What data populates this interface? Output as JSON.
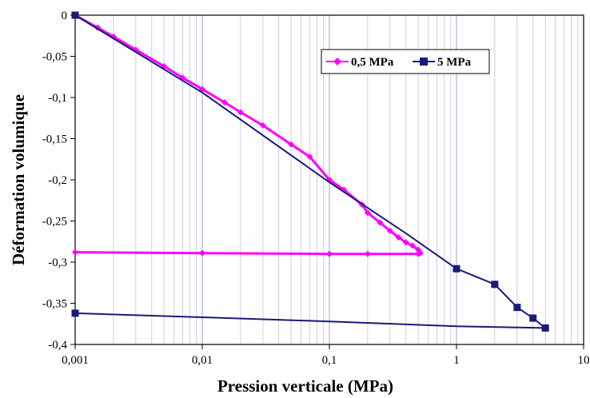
{
  "chart_data": {
    "type": "line",
    "title": "",
    "xlabel": "Pression verticale (MPa)",
    "ylabel": "Déformation volumique",
    "x_scale": "log",
    "xlim": [
      0.001,
      10
    ],
    "ylim": [
      -0.4,
      0
    ],
    "x_ticks": [
      "0,001",
      "0,01",
      "0,1",
      "1",
      "10"
    ],
    "y_ticks": [
      "0",
      "-0,05",
      "-0,1",
      "-0,15",
      "-0,2",
      "-0,25",
      "-0,3",
      "-0,35",
      "-0,4"
    ],
    "grid": "vertical minor and major gridlines on log x axis",
    "legend_position": "top-right",
    "series": [
      {
        "name": "0,5 MPa",
        "color": "#ff00ff",
        "marker": "diamond",
        "points": [
          [
            0.001,
            0
          ],
          [
            0.0015,
            -0.015
          ],
          [
            0.002,
            -0.026
          ],
          [
            0.003,
            -0.042
          ],
          [
            0.005,
            -0.062
          ],
          [
            0.007,
            -0.076
          ],
          [
            0.01,
            -0.09
          ],
          [
            0.015,
            -0.106
          ],
          [
            0.02,
            -0.118
          ],
          [
            0.03,
            -0.134
          ],
          [
            0.05,
            -0.157
          ],
          [
            0.07,
            -0.172
          ],
          [
            0.1,
            -0.2
          ],
          [
            0.13,
            -0.212
          ],
          [
            0.18,
            -0.23
          ],
          [
            0.2,
            -0.24
          ],
          [
            0.25,
            -0.252
          ],
          [
            0.3,
            -0.262
          ],
          [
            0.35,
            -0.27
          ],
          [
            0.4,
            -0.276
          ],
          [
            0.45,
            -0.28
          ],
          [
            0.5,
            -0.285
          ],
          [
            0.52,
            -0.289
          ],
          [
            0.5,
            -0.29
          ],
          [
            0.2,
            -0.29
          ],
          [
            0.1,
            -0.29
          ],
          [
            0.01,
            -0.289
          ],
          [
            0.001,
            -0.288
          ]
        ]
      },
      {
        "name": "5 MPa",
        "color": "#1a1a7a",
        "marker": "square",
        "points": [
          [
            0.001,
            0
          ],
          [
            0.01,
            -0.094
          ],
          [
            0.1,
            -0.203
          ],
          [
            0.4,
            -0.265
          ],
          [
            1,
            -0.308
          ],
          [
            2,
            -0.327
          ],
          [
            3,
            -0.355
          ],
          [
            4,
            -0.368
          ],
          [
            5,
            -0.38
          ],
          [
            1,
            -0.378
          ],
          [
            0.1,
            -0.372
          ],
          [
            0.01,
            -0.367
          ],
          [
            0.001,
            -0.362
          ]
        ],
        "marked_points": [
          [
            0.001,
            0
          ],
          [
            1,
            -0.308
          ],
          [
            2,
            -0.327
          ],
          [
            3,
            -0.355
          ],
          [
            4,
            -0.368
          ],
          [
            5,
            -0.38
          ],
          [
            0.001,
            -0.362
          ]
        ]
      }
    ]
  }
}
